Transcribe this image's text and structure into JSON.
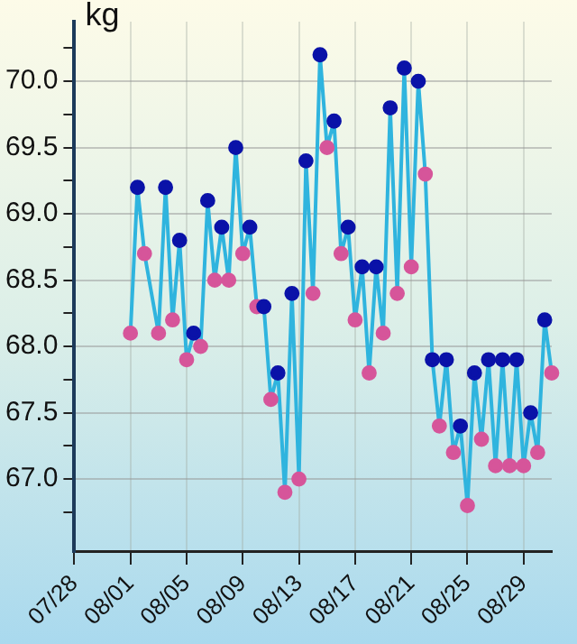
{
  "chart_data": {
    "type": "line",
    "ylabel": "kg",
    "categories": [
      "07/28",
      null,
      null,
      null,
      null,
      null,
      null,
      null,
      "08/01",
      null,
      null,
      null,
      null,
      null,
      null,
      null,
      "08/05",
      null,
      null,
      null,
      null,
      null,
      null,
      null,
      "08/09",
      null,
      null,
      null,
      null,
      null,
      null,
      null,
      "08/13",
      null,
      null,
      null,
      null,
      null,
      null,
      null,
      "08/17",
      null,
      null,
      null,
      null,
      null,
      null,
      null,
      "08/21",
      null,
      null,
      null,
      null,
      null,
      null,
      null,
      "08/25",
      null,
      null,
      null,
      null,
      null,
      null,
      null,
      "08/29",
      null,
      null,
      null,
      null
    ],
    "ylim": [
      66.45,
      70.45
    ],
    "yticks": [
      {
        "value": 66.75,
        "label": null
      },
      {
        "value": 67,
        "label": "67.0"
      },
      {
        "value": 67.25,
        "label": null
      },
      {
        "value": 67.5,
        "label": "67.5"
      },
      {
        "value": 67.75,
        "label": null
      },
      {
        "value": 68,
        "label": "68.0"
      },
      {
        "value": 68.25,
        "label": null
      },
      {
        "value": 68.5,
        "label": "68.5"
      },
      {
        "value": 68.75,
        "label": null
      },
      {
        "value": 69,
        "label": "69.0"
      },
      {
        "value": 69.25,
        "label": null
      },
      {
        "value": 69.5,
        "label": "69.5"
      },
      {
        "value": 69.75,
        "label": null
      },
      {
        "value": 70,
        "label": "70.0"
      },
      {
        "value": 70.25,
        "label": null
      }
    ],
    "grid": true,
    "marker": "circle",
    "line_style": "solid",
    "series": [
      {
        "color": "#2fb4de",
        "values": [
          null,
          null,
          null,
          null,
          null,
          null,
          null,
          null,
          68.1,
          69.2,
          68.7,
          null,
          68.1,
          69.2,
          68.2,
          68.8,
          67.9,
          68.1,
          68.0,
          69.1,
          68.5,
          68.9,
          68.5,
          69.5,
          68.7,
          68.9,
          68.3,
          68.3,
          67.6,
          67.8,
          66.9,
          68.4,
          67.0,
          69.4,
          68.4,
          70.2,
          69.5,
          69.7,
          68.7,
          68.9,
          68.2,
          68.6,
          67.8,
          68.6,
          68.1,
          69.8,
          68.4,
          70.1,
          68.6,
          70.0,
          69.3,
          67.9,
          67.4,
          67.9,
          67.2,
          67.4,
          66.8,
          67.8,
          67.3,
          67.9,
          67.1,
          67.9,
          67.1,
          67.9,
          67.1,
          67.5,
          67.2,
          68.2,
          67.8
        ],
        "colors": [
          null,
          null,
          null,
          null,
          null,
          null,
          null,
          null,
          "#d6559a",
          "#0a12a8",
          "#d6559a",
          null,
          "#d6559a",
          "#0a12a8",
          "#d6559a",
          "#0a12a8",
          "#d6559a",
          "#0a12a8",
          "#d6559a",
          "#0a12a8",
          "#d6559a",
          "#0a12a8",
          "#d6559a",
          "#0a12a8",
          "#d6559a",
          "#0a12a8",
          "#d6559a",
          "#0a12a8",
          "#d6559a",
          "#0a12a8",
          "#d6559a",
          "#0a12a8",
          "#d6559a",
          "#0a12a8",
          "#d6559a",
          "#0a12a8",
          "#d6559a",
          "#0a12a8",
          "#d6559a",
          "#0a12a8",
          "#d6559a",
          "#0a12a8",
          "#d6559a",
          "#0a12a8",
          "#d6559a",
          "#0a12a8",
          "#d6559a",
          "#0a12a8",
          "#d6559a",
          "#0a12a8",
          "#d6559a",
          "#0a12a8",
          "#d6559a",
          "#0a12a8",
          "#d6559a",
          "#0a12a8",
          "#d6559a",
          "#0a12a8",
          "#d6559a",
          "#0a12a8",
          "#d6559a",
          "#0a12a8",
          "#d6559a",
          "#0a12a8",
          "#d6559a",
          "#0a12a8",
          "#d6559a",
          "#0a12a8",
          "#d6559a"
        ]
      }
    ]
  }
}
